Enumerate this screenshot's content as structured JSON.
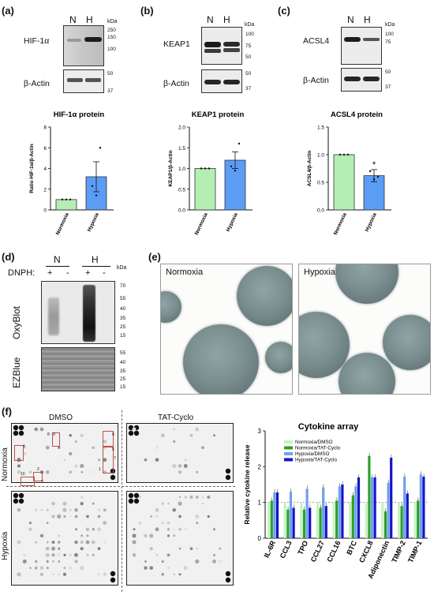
{
  "panels": {
    "a": {
      "label": "(a)",
      "protein": "HIF-1α",
      "loading": "β-Actin",
      "lanes": [
        "N",
        "H"
      ],
      "kda_unit": "kDa",
      "protein_markers": [
        "250",
        "150",
        "100"
      ],
      "actin_markers": [
        "50",
        "37"
      ]
    },
    "b": {
      "label": "(b)",
      "protein": "KEAP1",
      "loading": "β-Actin",
      "lanes": [
        "N",
        "H"
      ],
      "kda_unit": "kDa",
      "protein_markers": [
        "100",
        "75",
        "50"
      ],
      "actin_markers": [
        "50",
        "37"
      ]
    },
    "c": {
      "label": "(c)",
      "protein": "ACSL4",
      "loading": "β-Actin",
      "lanes": [
        "N",
        "H"
      ],
      "kda_unit": "kDa",
      "protein_markers": [
        "100",
        "75"
      ],
      "actin_markers": [
        "50",
        "37"
      ]
    },
    "d": {
      "label": "(d)",
      "lanes": [
        "N",
        "H"
      ],
      "dnph_label": "DNPH:",
      "dnph_signs": [
        "+",
        "-",
        "+",
        "-"
      ],
      "kda_unit": "kDa",
      "oxyblot_label": "OxyBlot",
      "ezblue_label": "EZBlue",
      "oxy_markers": [
        "70",
        "55",
        "40",
        "35",
        "25",
        "15"
      ],
      "ez_markers": [
        "55",
        "40",
        "35",
        "25",
        "15"
      ]
    },
    "e": {
      "label": "(e)",
      "left_title": "Normoxia",
      "right_title": "Hypoxia"
    },
    "f": {
      "label": "(f)",
      "col_labels": [
        "DMSO",
        "TAT-Cyclo"
      ],
      "row_labels": [
        "Normoxia",
        "Hypoxia"
      ],
      "box_numbers": [
        "1",
        "2",
        "3",
        "4",
        "5",
        "6",
        "7",
        "8",
        "9",
        "10"
      ]
    }
  },
  "chart_data": [
    {
      "type": "bar",
      "title": "HIF-1α protein",
      "ylabel": "Ratio HIF-1α/β-Actin",
      "categories": [
        "Normoxia",
        "Hypoxia"
      ],
      "values": [
        1.0,
        3.2
      ],
      "errors": [
        0.0,
        1.45
      ],
      "ylim": [
        0,
        8
      ],
      "yticks": [
        "0",
        "2",
        "4",
        "6",
        "8"
      ],
      "colors": [
        "#b4eeb4",
        "#5b9cf5"
      ],
      "significance": [
        "",
        ""
      ],
      "points": [
        [
          1.0,
          1.0,
          1.0
        ],
        [
          2.3,
          1.4,
          6.0
        ]
      ]
    },
    {
      "type": "bar",
      "title": "KEAP1 protein",
      "ylabel": "KEAP1/β-Actin",
      "categories": [
        "Normoxia",
        "Hypoxia"
      ],
      "values": [
        1.0,
        1.2
      ],
      "errors": [
        0.0,
        0.2
      ],
      "ylim": [
        0,
        2.0
      ],
      "yticks": [
        "0.0",
        "0.5",
        "1.0",
        "1.5",
        "2.0"
      ],
      "colors": [
        "#b4eeb4",
        "#5b9cf5"
      ],
      "significance": [
        "",
        ""
      ],
      "points": [
        [
          1.0,
          1.0,
          1.0
        ],
        [
          1.05,
          0.95,
          1.6
        ]
      ]
    },
    {
      "type": "bar",
      "title": "ACSL4 protein",
      "ylabel": "ACSL4/β-Actin",
      "categories": [
        "Normoxia",
        "Hypoxia"
      ],
      "values": [
        1.0,
        0.62
      ],
      "errors": [
        0.0,
        0.11
      ],
      "ylim": [
        0,
        1.5
      ],
      "yticks": [
        "0.0",
        "0.5",
        "1.0",
        "1.5"
      ],
      "colors": [
        "#b4eeb4",
        "#5b9cf5"
      ],
      "significance": [
        "",
        "*"
      ],
      "points": [
        [
          1.0,
          1.0,
          1.0
        ],
        [
          0.7,
          0.55,
          0.6
        ]
      ]
    },
    {
      "type": "bar",
      "title": "Cytokine array",
      "ylabel": "Relative cytokine release",
      "categories": [
        "IL-6R",
        "CCL3",
        "TPO",
        "CCL27",
        "CCL16",
        "BTC",
        "CXCL8",
        "Adiponectin",
        "TIMP-2",
        "TIMP-1"
      ],
      "ylim": [
        0,
        3
      ],
      "yticks": [
        "0",
        "1",
        "2",
        "3"
      ],
      "series": [
        {
          "name": "Normoxia/DMSO",
          "color": "#c8f2c0",
          "values": [
            1,
            1,
            1,
            1,
            1,
            1,
            1,
            1,
            1,
            1
          ]
        },
        {
          "name": "Normoxia/TAT-Cyclo",
          "color": "#2ca02c",
          "values": [
            1.05,
            0.8,
            0.8,
            0.85,
            1.05,
            1.2,
            2.3,
            0.75,
            0.9,
            1.05
          ]
        },
        {
          "name": "Hypoxia/DMSO",
          "color": "#6fa0ee",
          "values": [
            1.28,
            1.3,
            1.38,
            1.42,
            1.45,
            1.45,
            1.7,
            1.55,
            1.72,
            1.78
          ]
        },
        {
          "name": "Hypoxia/TAT-Cyclo",
          "color": "#1414c8",
          "values": [
            1.28,
            0.85,
            0.85,
            0.9,
            1.5,
            1.7,
            1.7,
            2.25,
            1.25,
            1.72
          ]
        }
      ]
    }
  ]
}
